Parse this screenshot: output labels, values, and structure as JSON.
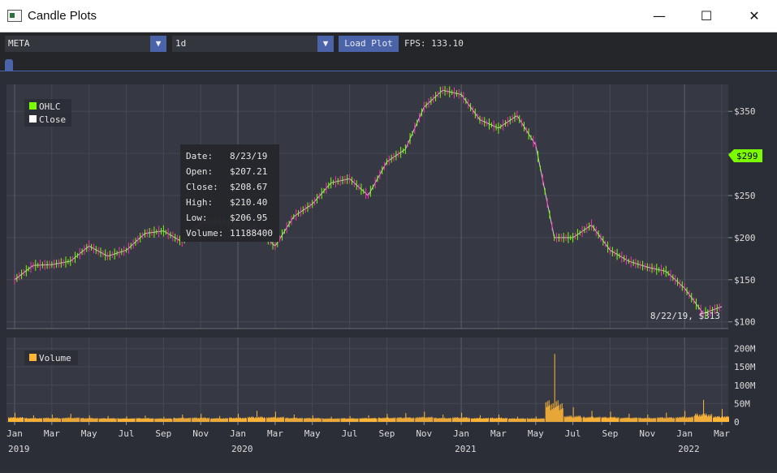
{
  "window": {
    "title": "Candle Plots",
    "min": "—",
    "max": "☐",
    "close": "✕"
  },
  "toolbar": {
    "symbol": "META",
    "interval": "1d",
    "load_label": "Load Plot",
    "fps_text": "FPS: 133.10",
    "arrow_icon": "triangle-down-icon"
  },
  "colors": {
    "bull": "#7cfc00",
    "bear": "#ff2db3",
    "volume": "#ffb637",
    "accent": "#4b63a8",
    "plot_bg": "#363944"
  },
  "price_plot": {
    "legend": [
      {
        "label": "OHLC",
        "color": "#7cfc00"
      },
      {
        "label": "Close",
        "color": "#ffffff"
      }
    ],
    "yticks": [
      "$350",
      "$300",
      "$250",
      "$200",
      "$150",
      "$100"
    ],
    "last_price_tag": "$299",
    "hover_readout": "8/22/19, $313"
  },
  "tooltip": {
    "rows": [
      {
        "k": "Date:",
        "v": "8/23/19"
      },
      {
        "k": "Open:",
        "v": "$207.21"
      },
      {
        "k": "Close:",
        "v": "$208.67"
      },
      {
        "k": "High:",
        "v": "$210.40"
      },
      {
        "k": "Low:",
        "v": "$206.95"
      },
      {
        "k": "Volume:",
        "v": "11188400"
      }
    ]
  },
  "volume_plot": {
    "legend": "Volume",
    "yticks": [
      "200M",
      "150M",
      "100M",
      "50M",
      "0"
    ]
  },
  "xaxis": {
    "months": [
      "Jan",
      "Mar",
      "May",
      "Jul",
      "Sep",
      "Nov",
      "Jan",
      "Mar",
      "May",
      "Jul",
      "Sep",
      "Nov",
      "Jan",
      "Mar",
      "May",
      "Jul",
      "Sep",
      "Nov",
      "Jan",
      "Mar"
    ],
    "years": [
      "2019",
      "2020",
      "2021",
      "2022"
    ]
  },
  "chart_data": {
    "type": "line",
    "title": "",
    "xlabel": "",
    "ylabel": "",
    "ylim": [
      92,
      382
    ],
    "dates": [
      "2019-01",
      "2019-02",
      "2019-03",
      "2019-04",
      "2019-05",
      "2019-06",
      "2019-07",
      "2019-08",
      "2019-09",
      "2019-10",
      "2019-11",
      "2019-12",
      "2020-01",
      "2020-02",
      "2020-03",
      "2020-04",
      "2020-05",
      "2020-06",
      "2020-07",
      "2020-08",
      "2020-09",
      "2020-10",
      "2020-11",
      "2020-12",
      "2021-01",
      "2021-02",
      "2021-03",
      "2021-04",
      "2021-05",
      "2021-06",
      "2021-07",
      "2021-08",
      "2021-09",
      "2021-10",
      "2021-11",
      "2021-12",
      "2022-01",
      "2022-02",
      "2022-03"
    ],
    "series": [
      {
        "name": "Close",
        "values": [
          150,
          167,
          168,
          172,
          190,
          178,
          185,
          205,
          208,
          195,
          217,
          220,
          215,
          210,
          190,
          225,
          240,
          265,
          270,
          250,
          290,
          305,
          355,
          375,
          370,
          340,
          330,
          345,
          310,
          200,
          200,
          215,
          185,
          172,
          165,
          160,
          140,
          110,
          118
        ]
      }
    ],
    "volume_series": {
      "name": "Volume",
      "units": "M",
      "values": [
        25,
        18,
        20,
        22,
        18,
        16,
        15,
        17,
        14,
        20,
        22,
        16,
        22,
        30,
        28,
        20,
        18,
        14,
        16,
        18,
        22,
        24,
        28,
        20,
        25,
        18,
        20,
        14,
        15,
        185,
        40,
        30,
        28,
        22,
        20,
        25,
        30,
        60,
        35
      ]
    }
  }
}
